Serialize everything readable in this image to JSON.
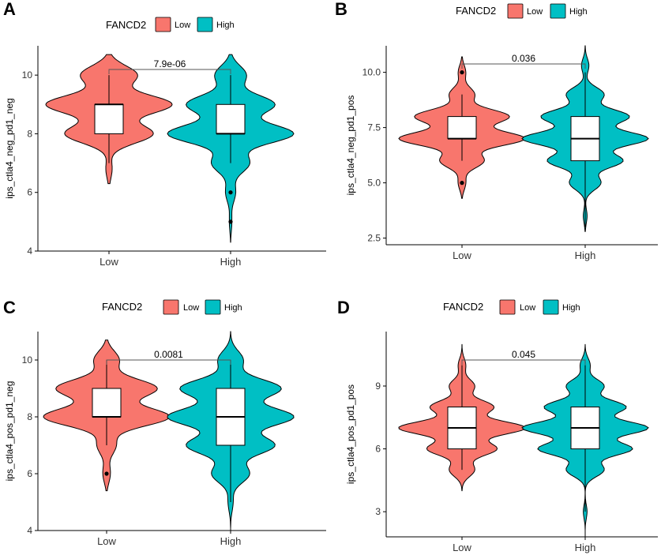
{
  "legend": {
    "title": "FANCD2",
    "entries": [
      {
        "label": "Low",
        "color": "#F8766D"
      },
      {
        "label": "High",
        "color": "#00BFC4"
      }
    ]
  },
  "chart_data": [
    {
      "type": "violin",
      "panel": "A",
      "title": "",
      "xlabel": "",
      "ylabel": "ips_ctla4_neg_pd1_neg",
      "ylim": [
        4,
        11
      ],
      "yticks": [
        "4",
        "6",
        "8",
        "10"
      ],
      "categories": [
        "Low",
        "High"
      ],
      "pvalue": "7.9e-06",
      "series": [
        {
          "name": "Low",
          "range": [
            6.3,
            10.7
          ],
          "q1": 8,
          "median": 9,
          "q3": 9,
          "whisker_low": 7,
          "whisker_high": 10,
          "outliers": [],
          "density_peaks": [
            [
              6.8,
              0.05
            ],
            [
              8.0,
              0.7
            ],
            [
              9.0,
              1.0
            ],
            [
              10.0,
              0.45
            ]
          ]
        },
        {
          "name": "High",
          "range": [
            4.3,
            10.7
          ],
          "q1": 8,
          "median": 8,
          "q3": 9,
          "whisker_low": 7,
          "whisker_high": 10,
          "outliers": [
            6,
            5
          ],
          "density_peaks": [
            [
              5.0,
              0.02
            ],
            [
              6.0,
              0.08
            ],
            [
              7.0,
              0.3
            ],
            [
              8.0,
              1.0
            ],
            [
              9.0,
              0.7
            ],
            [
              10.0,
              0.25
            ]
          ]
        }
      ]
    },
    {
      "type": "violin",
      "panel": "B",
      "title": "",
      "xlabel": "",
      "ylabel": "ips_ctla4_neg_pd1_pos",
      "ylim": [
        2.2,
        11.2
      ],
      "yticks": [
        "2.5",
        "5.0",
        "7.5",
        "10.0"
      ],
      "categories": [
        "Low",
        "High"
      ],
      "pvalue": "0.036",
      "series": [
        {
          "name": "Low",
          "range": [
            4.3,
            10.7
          ],
          "q1": 7,
          "median": 7,
          "q3": 8,
          "whisker_low": 6,
          "whisker_high": 9,
          "outliers": [
            10,
            5
          ],
          "density_peaks": [
            [
              5.0,
              0.06
            ],
            [
              6.0,
              0.35
            ],
            [
              7.0,
              1.0
            ],
            [
              8.0,
              0.75
            ],
            [
              9.0,
              0.2
            ],
            [
              10.0,
              0.06
            ]
          ]
        },
        {
          "name": "High",
          "range": [
            2.8,
            11.2
          ],
          "q1": 6,
          "median": 7,
          "q3": 8,
          "whisker_low": 3,
          "whisker_high": 10,
          "outliers": [],
          "density_peaks": [
            [
              3.5,
              0.03
            ],
            [
              5.0,
              0.25
            ],
            [
              6.0,
              0.6
            ],
            [
              7.0,
              1.0
            ],
            [
              8.0,
              0.7
            ],
            [
              9.0,
              0.3
            ],
            [
              10.3,
              0.06
            ]
          ]
        }
      ]
    },
    {
      "type": "violin",
      "panel": "C",
      "title": "",
      "xlabel": "",
      "ylabel": "ips_ctla4_pos_pd1_neg",
      "ylim": [
        4,
        11
      ],
      "yticks": [
        "4",
        "6",
        "8",
        "10"
      ],
      "categories": [
        "Low",
        "High"
      ],
      "pvalue": "0.0081",
      "series": [
        {
          "name": "Low",
          "range": [
            5.4,
            10.7
          ],
          "q1": 8,
          "median": 8,
          "q3": 9,
          "whisker_low": 7,
          "whisker_high": 10,
          "outliers": [
            6
          ],
          "density_peaks": [
            [
              6.0,
              0.06
            ],
            [
              7.0,
              0.15
            ],
            [
              8.0,
              1.0
            ],
            [
              9.0,
              0.8
            ],
            [
              10.0,
              0.2
            ]
          ]
        },
        {
          "name": "High",
          "range": [
            4.0,
            11.0
          ],
          "q1": 7,
          "median": 8,
          "q3": 9,
          "whisker_low": 5,
          "whisker_high": 10,
          "outliers": [],
          "density_peaks": [
            [
              5.0,
              0.04
            ],
            [
              6.0,
              0.3
            ],
            [
              7.0,
              0.7
            ],
            [
              8.0,
              1.0
            ],
            [
              9.0,
              0.8
            ],
            [
              10.0,
              0.2
            ]
          ]
        }
      ]
    },
    {
      "type": "violin",
      "panel": "D",
      "title": "",
      "xlabel": "",
      "ylabel": "ips_ctla4_pos_pd1_pos",
      "ylim": [
        1.8,
        11.6
      ],
      "yticks": [
        "3",
        "6",
        "9"
      ],
      "categories": [
        "Low",
        "High"
      ],
      "pvalue": "0.045",
      "series": [
        {
          "name": "Low",
          "range": [
            4.0,
            11.0
          ],
          "q1": 6,
          "median": 7,
          "q3": 8,
          "whisker_low": 5,
          "whisker_high": 10,
          "outliers": [],
          "density_peaks": [
            [
              5.0,
              0.2
            ],
            [
              6.0,
              0.55
            ],
            [
              7.0,
              1.0
            ],
            [
              8.0,
              0.5
            ],
            [
              9.0,
              0.2
            ],
            [
              10.0,
              0.06
            ]
          ]
        },
        {
          "name": "High",
          "range": [
            1.8,
            11.0
          ],
          "q1": 6,
          "median": 7,
          "q3": 8,
          "whisker_low": 3,
          "whisker_high": 10,
          "outliers": [],
          "density_peaks": [
            [
              3.0,
              0.03
            ],
            [
              5.0,
              0.3
            ],
            [
              6.0,
              0.75
            ],
            [
              7.0,
              1.0
            ],
            [
              8.0,
              0.65
            ],
            [
              9.0,
              0.3
            ],
            [
              10.0,
              0.08
            ]
          ]
        }
      ]
    }
  ]
}
